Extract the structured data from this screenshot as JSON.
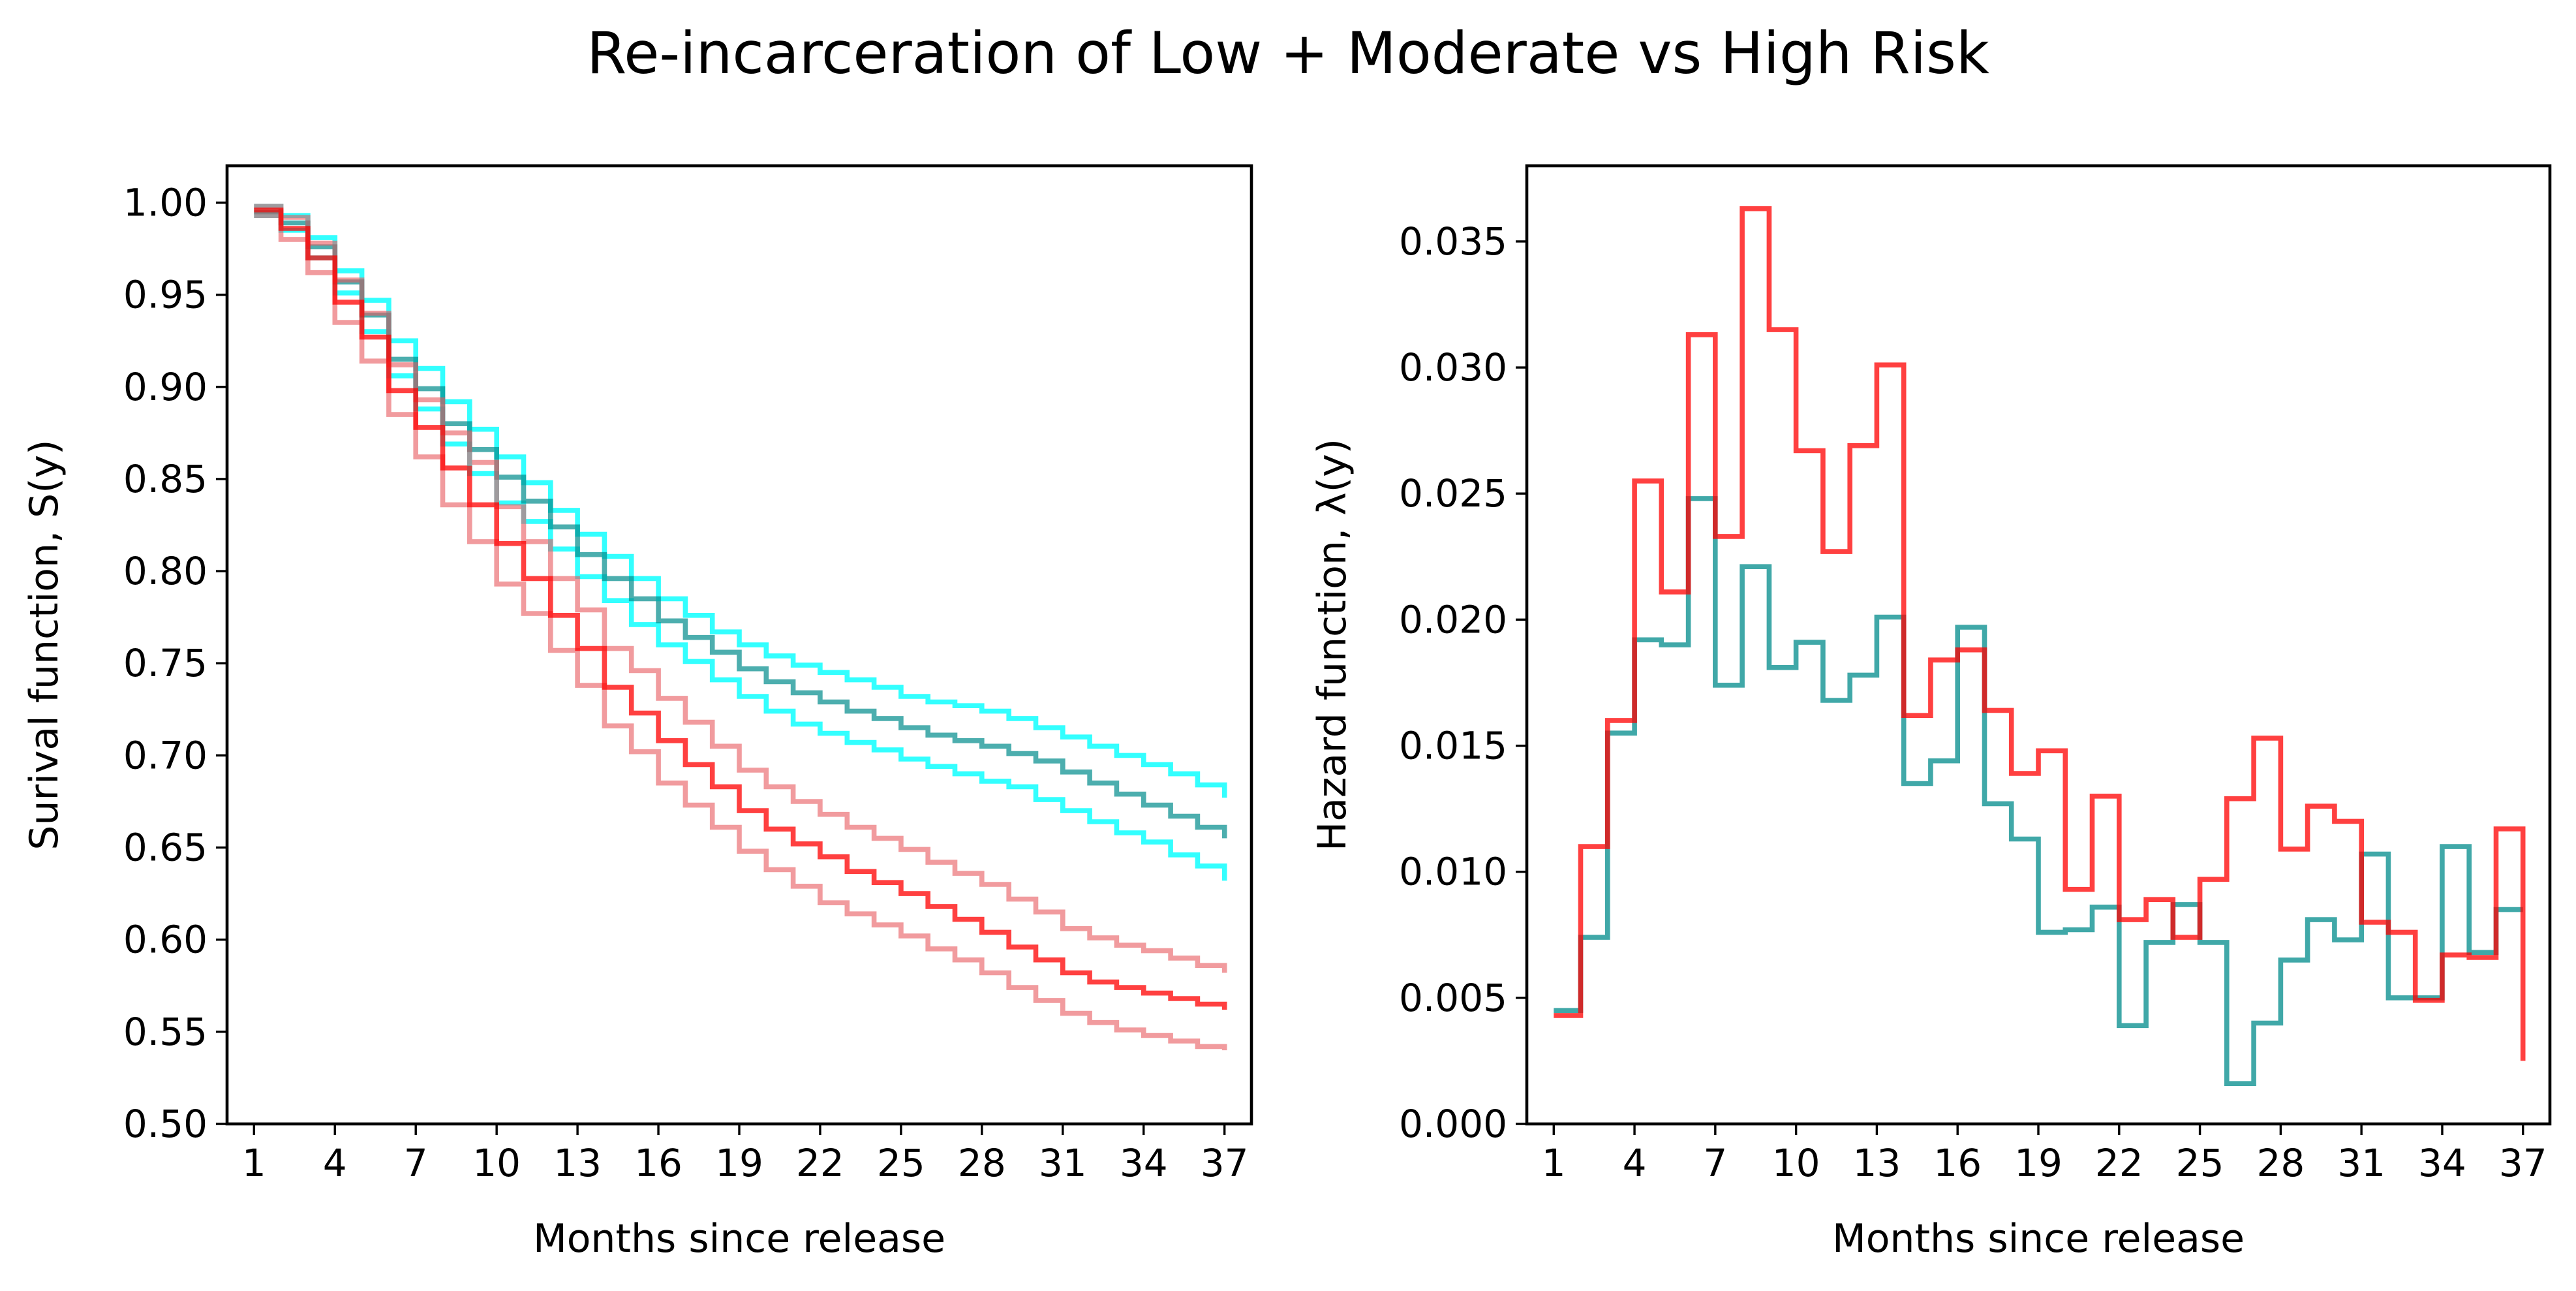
{
  "title": "Re-incarceration of Low + Moderate vs High Risk",
  "chart_data": [
    {
      "type": "line",
      "step": true,
      "xlabel": "Months since release",
      "ylabel": "Surival function, S(y)",
      "xlim": [
        0,
        38
      ],
      "ylim": [
        0.5,
        1.02
      ],
      "xticks": [
        1,
        4,
        7,
        10,
        13,
        16,
        19,
        22,
        25,
        28,
        31,
        34,
        37
      ],
      "xtick_labels": [
        "1",
        "4",
        "7",
        "10",
        "13",
        "16",
        "19",
        "22",
        "25",
        "28",
        "31",
        "34",
        "37"
      ],
      "yticks": [
        0.5,
        0.55,
        0.6,
        0.65,
        0.7,
        0.75,
        0.8,
        0.85,
        0.9,
        0.95,
        1.0
      ],
      "ytick_labels": [
        "0.50",
        "0.55",
        "0.60",
        "0.65",
        "0.70",
        "0.75",
        "0.80",
        "0.85",
        "0.90",
        "0.95",
        "1.00"
      ],
      "x": [
        1,
        2,
        3,
        4,
        5,
        6,
        7,
        8,
        9,
        10,
        11,
        12,
        13,
        14,
        15,
        16,
        17,
        18,
        19,
        20,
        21,
        22,
        23,
        24,
        25,
        26,
        27,
        28,
        29,
        30,
        31,
        32,
        33,
        34,
        35,
        36,
        37
      ],
      "series": [
        {
          "role": "ci-upper",
          "color": "#00ffff",
          "opacity": 0.8,
          "values": [
            0.998,
            0.993,
            0.981,
            0.963,
            0.947,
            0.925,
            0.91,
            0.892,
            0.877,
            0.862,
            0.848,
            0.833,
            0.82,
            0.808,
            0.796,
            0.785,
            0.776,
            0.767,
            0.76,
            0.754,
            0.749,
            0.745,
            0.741,
            0.737,
            0.732,
            0.729,
            0.727,
            0.724,
            0.72,
            0.715,
            0.71,
            0.705,
            0.7,
            0.695,
            0.69,
            0.684,
            0.677
          ]
        },
        {
          "role": "ci-lower",
          "color": "#00ffff",
          "opacity": 0.8,
          "values": [
            0.993,
            0.985,
            0.97,
            0.951,
            0.93,
            0.906,
            0.888,
            0.869,
            0.853,
            0.837,
            0.827,
            0.812,
            0.797,
            0.784,
            0.771,
            0.76,
            0.751,
            0.741,
            0.732,
            0.724,
            0.717,
            0.712,
            0.707,
            0.703,
            0.698,
            0.694,
            0.69,
            0.686,
            0.683,
            0.676,
            0.67,
            0.664,
            0.658,
            0.653,
            0.646,
            0.64,
            0.632
          ]
        },
        {
          "role": "estimate",
          "color": "#008b8b",
          "opacity": 0.7,
          "values": [
            0.995,
            0.989,
            0.976,
            0.957,
            0.939,
            0.915,
            0.899,
            0.88,
            0.866,
            0.851,
            0.838,
            0.824,
            0.809,
            0.796,
            0.785,
            0.773,
            0.764,
            0.756,
            0.747,
            0.74,
            0.734,
            0.729,
            0.724,
            0.72,
            0.715,
            0.711,
            0.708,
            0.705,
            0.701,
            0.697,
            0.691,
            0.685,
            0.679,
            0.673,
            0.667,
            0.661,
            0.655
          ]
        },
        {
          "role": "ci-upper",
          "color": "#e8585d",
          "opacity": 0.6,
          "values": [
            0.998,
            0.992,
            0.978,
            0.958,
            0.94,
            0.912,
            0.893,
            0.875,
            0.859,
            0.835,
            0.816,
            0.796,
            0.779,
            0.758,
            0.746,
            0.731,
            0.718,
            0.705,
            0.692,
            0.683,
            0.675,
            0.668,
            0.661,
            0.655,
            0.649,
            0.642,
            0.636,
            0.63,
            0.622,
            0.615,
            0.606,
            0.601,
            0.597,
            0.594,
            0.59,
            0.586,
            0.582
          ]
        },
        {
          "role": "ci-lower",
          "color": "#e8585d",
          "opacity": 0.6,
          "values": [
            0.993,
            0.98,
            0.962,
            0.935,
            0.914,
            0.885,
            0.862,
            0.836,
            0.816,
            0.793,
            0.777,
            0.757,
            0.738,
            0.716,
            0.702,
            0.685,
            0.673,
            0.661,
            0.648,
            0.638,
            0.629,
            0.62,
            0.614,
            0.608,
            0.602,
            0.595,
            0.589,
            0.582,
            0.574,
            0.567,
            0.56,
            0.555,
            0.551,
            0.548,
            0.545,
            0.542,
            0.54
          ]
        },
        {
          "role": "estimate",
          "color": "#ff0000",
          "opacity": 0.75,
          "values": [
            0.996,
            0.986,
            0.97,
            0.946,
            0.927,
            0.898,
            0.878,
            0.856,
            0.836,
            0.815,
            0.796,
            0.776,
            0.758,
            0.737,
            0.723,
            0.708,
            0.695,
            0.683,
            0.67,
            0.66,
            0.652,
            0.645,
            0.637,
            0.631,
            0.625,
            0.618,
            0.611,
            0.604,
            0.596,
            0.589,
            0.582,
            0.577,
            0.574,
            0.571,
            0.568,
            0.565,
            0.562
          ]
        }
      ]
    },
    {
      "type": "line",
      "step": true,
      "xlabel": "Months since release",
      "ylabel": "Hazard function, λ(y)",
      "xlim": [
        0,
        38
      ],
      "ylim": [
        0,
        0.038
      ],
      "xticks": [
        1,
        4,
        7,
        10,
        13,
        16,
        19,
        22,
        25,
        28,
        31,
        34,
        37
      ],
      "xtick_labels": [
        "1",
        "4",
        "7",
        "10",
        "13",
        "16",
        "19",
        "22",
        "25",
        "28",
        "31",
        "34",
        "37"
      ],
      "yticks": [
        0,
        0.005,
        0.01,
        0.015,
        0.02,
        0.025,
        0.03,
        0.035
      ],
      "ytick_labels": [
        "0.000",
        "0.005",
        "0.010",
        "0.015",
        "0.020",
        "0.025",
        "0.030",
        "0.035"
      ],
      "x": [
        1,
        2,
        3,
        4,
        5,
        6,
        7,
        8,
        9,
        10,
        11,
        12,
        13,
        14,
        15,
        16,
        17,
        18,
        19,
        20,
        21,
        22,
        23,
        24,
        25,
        26,
        27,
        28,
        29,
        30,
        31,
        32,
        33,
        34,
        35,
        36,
        37
      ],
      "series": [
        {
          "color": "#008b8b",
          "opacity": 0.75,
          "values": [
            0.0045,
            0.0074,
            0.0155,
            0.0192,
            0.019,
            0.0248,
            0.0174,
            0.0221,
            0.0181,
            0.0191,
            0.0168,
            0.0178,
            0.0201,
            0.0135,
            0.0144,
            0.0197,
            0.0127,
            0.0113,
            0.0076,
            0.0077,
            0.0086,
            0.0039,
            0.0072,
            0.0087,
            0.0072,
            0.0016,
            0.004,
            0.0065,
            0.0081,
            0.0073,
            0.0107,
            0.005,
            0.005,
            0.011,
            0.0068,
            0.0085,
            0.0085
          ]
        },
        {
          "color": "#ff0000",
          "opacity": 0.75,
          "values": [
            0.0043,
            0.011,
            0.016,
            0.0255,
            0.0211,
            0.0313,
            0.0233,
            0.0363,
            0.0315,
            0.0267,
            0.0227,
            0.0269,
            0.0301,
            0.0162,
            0.0184,
            0.0188,
            0.0164,
            0.0139,
            0.0148,
            0.0093,
            0.013,
            0.0081,
            0.0089,
            0.0074,
            0.0097,
            0.0129,
            0.0153,
            0.0109,
            0.0126,
            0.012,
            0.008,
            0.0076,
            0.0049,
            0.0067,
            0.0066,
            0.0117,
            0.0025
          ]
        }
      ]
    }
  ]
}
